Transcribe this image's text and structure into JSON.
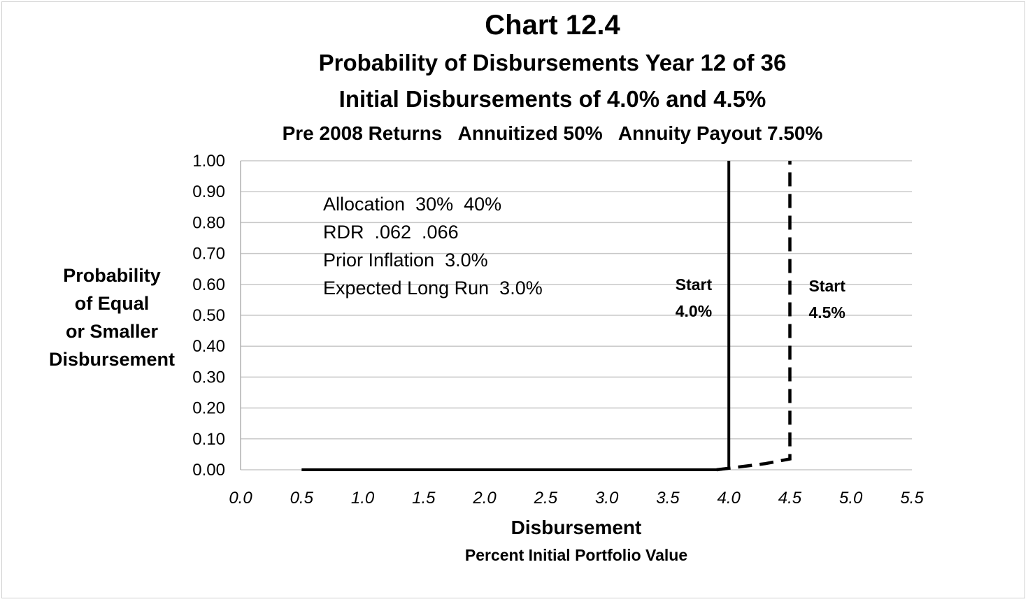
{
  "chart_data": {
    "type": "line",
    "title": "Chart 12.4",
    "subtitle_lines": [
      "Probability of Disbursements Year 12 of 36",
      "Initial Disbursements of 4.0% and 4.5%",
      "Pre 2008 Returns   Annuitized 50%   Annuity Payout 7.50%"
    ],
    "xlabel": "Disbursement",
    "xlabel_sub": "Percent Initial Portfolio Value",
    "ylabel_lines": [
      "Probability",
      "of Equal",
      "or Smaller",
      "Disbursement"
    ],
    "xlim": [
      0.0,
      5.5
    ],
    "ylim": [
      0.0,
      1.0
    ],
    "x_ticks": [
      "0.0",
      "0.5",
      "1.0",
      "1.5",
      "2.0",
      "2.5",
      "3.0",
      "3.5",
      "4.0",
      "4.5",
      "5.0",
      "5.5"
    ],
    "y_ticks": [
      "0.00",
      "0.10",
      "0.20",
      "0.30",
      "0.40",
      "0.50",
      "0.60",
      "0.70",
      "0.80",
      "0.90",
      "1.00"
    ],
    "grid": true,
    "annotation_lines": [
      "Allocation  30%  40%",
      "RDR  .062  .066",
      "Prior Inflation  3.0%",
      "Expected Long Run  3.0%"
    ],
    "series": [
      {
        "label_lines": [
          "Start",
          "4.0%"
        ],
        "style": "solid",
        "points": [
          [
            0.5,
            0.0
          ],
          [
            3.5,
            0.0
          ],
          [
            3.9,
            0.0
          ],
          [
            4.0,
            0.005
          ],
          [
            4.0,
            1.0
          ]
        ]
      },
      {
        "label_lines": [
          "Start",
          "4.5%"
        ],
        "style": "dashed",
        "points": [
          [
            3.9,
            0.0
          ],
          [
            4.0,
            0.005
          ],
          [
            4.3,
            0.02
          ],
          [
            4.5,
            0.035
          ],
          [
            4.5,
            1.0
          ]
        ]
      }
    ]
  }
}
